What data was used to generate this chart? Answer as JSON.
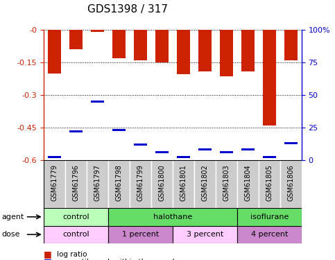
{
  "title": "GDS1398 / 317",
  "samples": [
    "GSM61779",
    "GSM61796",
    "GSM61797",
    "GSM61798",
    "GSM61799",
    "GSM61800",
    "GSM61801",
    "GSM61802",
    "GSM61803",
    "GSM61804",
    "GSM61805",
    "GSM61806"
  ],
  "log_ratios": [
    -0.2,
    -0.09,
    -0.008,
    -0.13,
    -0.14,
    -0.15,
    -0.205,
    -0.19,
    -0.215,
    -0.19,
    -0.44,
    -0.14
  ],
  "percentile_ranks": [
    0.02,
    0.22,
    0.45,
    0.23,
    0.12,
    0.06,
    0.02,
    0.08,
    0.06,
    0.08,
    0.02,
    0.13
  ],
  "ylim_min": -0.6,
  "ylim_max": 0.0,
  "yticks": [
    0.0,
    -0.15,
    -0.3,
    -0.45,
    -0.6
  ],
  "ytick_labels": [
    "-0",
    "-0.15",
    "-0.3",
    "-0.45",
    "-0.6"
  ],
  "right_yticks": [
    0,
    25,
    50,
    75,
    100
  ],
  "right_ytick_labels": [
    "0",
    "25",
    "50",
    "75",
    "100%"
  ],
  "bar_color": "#cc2200",
  "marker_color": "#0000cc",
  "bar_width": 0.6,
  "agent_groups": [
    {
      "label": "control",
      "start": 0,
      "end": 3,
      "color": "#bbffbb"
    },
    {
      "label": "halothane",
      "start": 3,
      "end": 9,
      "color": "#66ee66"
    },
    {
      "label": "isoflurane",
      "start": 9,
      "end": 12,
      "color": "#66ee66"
    }
  ],
  "dose_groups": [
    {
      "label": "control",
      "start": 0,
      "end": 3,
      "color": "#ffccff"
    },
    {
      "label": "1 percent",
      "start": 3,
      "end": 6,
      "color": "#dd88dd"
    },
    {
      "label": "3 percent",
      "start": 6,
      "end": 9,
      "color": "#ffccff"
    },
    {
      "label": "4 percent",
      "start": 9,
      "end": 12,
      "color": "#dd88dd"
    }
  ],
  "bg_color": "#ffffff",
  "left_label_color": "#cc2200",
  "right_label_color": "#0000cc",
  "title_fontsize": 11,
  "tick_fontsize": 8,
  "sample_fontsize": 7,
  "group_fontsize": 8
}
